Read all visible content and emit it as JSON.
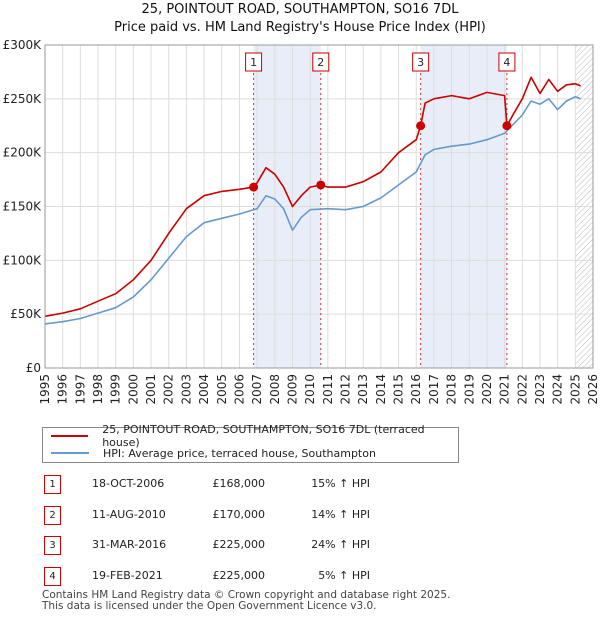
{
  "header": {
    "title": "25, POINTOUT ROAD, SOUTHAMPTON, SO16 7DL",
    "subtitle": "Price paid vs. HM Land Registry's House Price Index (HPI)"
  },
  "colors": {
    "property": "#cc0000",
    "hpi": "#6699cc",
    "shade": "#e8eef8",
    "grid": "#dddddd"
  },
  "chart_data": {
    "type": "line",
    "title": "25, POINTOUT ROAD, SOUTHAMPTON, SO16 7DL",
    "subtitle": "Price paid vs. HM Land Registry's House Price Index (HPI)",
    "xlabel": "",
    "ylabel": "",
    "xlim": [
      1995,
      2026
    ],
    "ylim": [
      0,
      300000
    ],
    "x_ticks": [
      "1995",
      "1996",
      "1997",
      "1998",
      "1999",
      "2000",
      "2001",
      "2002",
      "2003",
      "2004",
      "2005",
      "2006",
      "2007",
      "2008",
      "2009",
      "2010",
      "2011",
      "2012",
      "2013",
      "2014",
      "2015",
      "2016",
      "2017",
      "2018",
      "2019",
      "2020",
      "2021",
      "2022",
      "2023",
      "2024",
      "2025",
      "2026"
    ],
    "y_ticks": [
      {
        "value": 0,
        "label": "£0"
      },
      {
        "value": 50000,
        "label": "£50K"
      },
      {
        "value": 100000,
        "label": "£100K"
      },
      {
        "value": 150000,
        "label": "£150K"
      },
      {
        "value": 200000,
        "label": "£200K"
      },
      {
        "value": 250000,
        "label": "£250K"
      },
      {
        "value": 300000,
        "label": "£300K"
      }
    ],
    "grid": true,
    "shaded_periods": [
      [
        2006.8,
        2010.6
      ],
      [
        2016.25,
        2021.13
      ]
    ],
    "hatched_after": 2025.0,
    "series": [
      {
        "name": "25, POINTOUT ROAD, SOUTHAMPTON, SO16 7DL (terraced house)",
        "color": "#cc0000",
        "x": [
          1995.0,
          1996.0,
          1997.0,
          1998.0,
          1999.0,
          2000.0,
          2001.0,
          2002.0,
          2003.0,
          2004.0,
          2005.0,
          2006.0,
          2006.8,
          2007.0,
          2007.5,
          2008.0,
          2008.5,
          2009.0,
          2009.5,
          2010.0,
          2010.6,
          2011.0,
          2012.0,
          2013.0,
          2014.0,
          2015.0,
          2016.0,
          2016.25,
          2016.5,
          2017.0,
          2018.0,
          2019.0,
          2020.0,
          2021.0,
          2021.13,
          2021.5,
          2022.0,
          2022.5,
          2023.0,
          2023.5,
          2024.0,
          2024.5,
          2025.0,
          2025.3
        ],
        "y": [
          48000,
          51000,
          55000,
          62000,
          69000,
          82000,
          100000,
          125000,
          148000,
          160000,
          164000,
          166000,
          168000,
          172000,
          186000,
          180000,
          168000,
          150000,
          160000,
          168000,
          170000,
          168000,
          168000,
          173000,
          182000,
          200000,
          212000,
          225000,
          246000,
          250000,
          253000,
          250000,
          256000,
          253000,
          225000,
          236000,
          250000,
          270000,
          255000,
          268000,
          257000,
          263000,
          264000,
          262000
        ]
      },
      {
        "name": "HPI: Average price, terraced house, Southampton",
        "color": "#6699cc",
        "x": [
          1995.0,
          1996.0,
          1997.0,
          1998.0,
          1999.0,
          2000.0,
          2001.0,
          2002.0,
          2003.0,
          2004.0,
          2005.0,
          2006.0,
          2007.0,
          2007.5,
          2008.0,
          2008.5,
          2009.0,
          2009.5,
          2010.0,
          2011.0,
          2012.0,
          2013.0,
          2014.0,
          2015.0,
          2016.0,
          2016.5,
          2017.0,
          2018.0,
          2019.0,
          2020.0,
          2021.0,
          2022.0,
          2022.5,
          2023.0,
          2023.5,
          2024.0,
          2024.5,
          2025.0,
          2025.3
        ],
        "y": [
          41000,
          43000,
          46000,
          51000,
          56000,
          66000,
          82000,
          102000,
          122000,
          135000,
          139000,
          143000,
          148000,
          160000,
          157000,
          148000,
          128000,
          140000,
          147000,
          148000,
          147000,
          150000,
          158000,
          170000,
          182000,
          198000,
          203000,
          206000,
          208000,
          212000,
          218000,
          235000,
          248000,
          245000,
          250000,
          240000,
          248000,
          252000,
          250000
        ]
      }
    ],
    "markers": [
      {
        "id": "1",
        "x": 2006.8,
        "y": 168000
      },
      {
        "id": "2",
        "x": 2010.6,
        "y": 170000
      },
      {
        "id": "3",
        "x": 2016.25,
        "y": 225000
      },
      {
        "id": "4",
        "x": 2021.13,
        "y": 225000
      }
    ]
  },
  "legend": {
    "property_label": "25, POINTOUT ROAD, SOUTHAMPTON, SO16 7DL (terraced house)",
    "hpi_label": "HPI: Average price, terraced house, Southampton"
  },
  "transactions": [
    {
      "num": "1",
      "date": "18-OCT-2006",
      "price": "£168,000",
      "hpi": "15% ↑ HPI"
    },
    {
      "num": "2",
      "date": "11-AUG-2010",
      "price": "£170,000",
      "hpi": "14% ↑ HPI"
    },
    {
      "num": "3",
      "date": "31-MAR-2016",
      "price": "£225,000",
      "hpi": "24% ↑ HPI"
    },
    {
      "num": "4",
      "date": "19-FEB-2021",
      "price": "£225,000",
      "hpi": "5% ↑ HPI"
    }
  ],
  "footer": {
    "line1": "Contains HM Land Registry data © Crown copyright and database right 2025.",
    "line2": "This data is licensed under the Open Government Licence v3.0."
  }
}
